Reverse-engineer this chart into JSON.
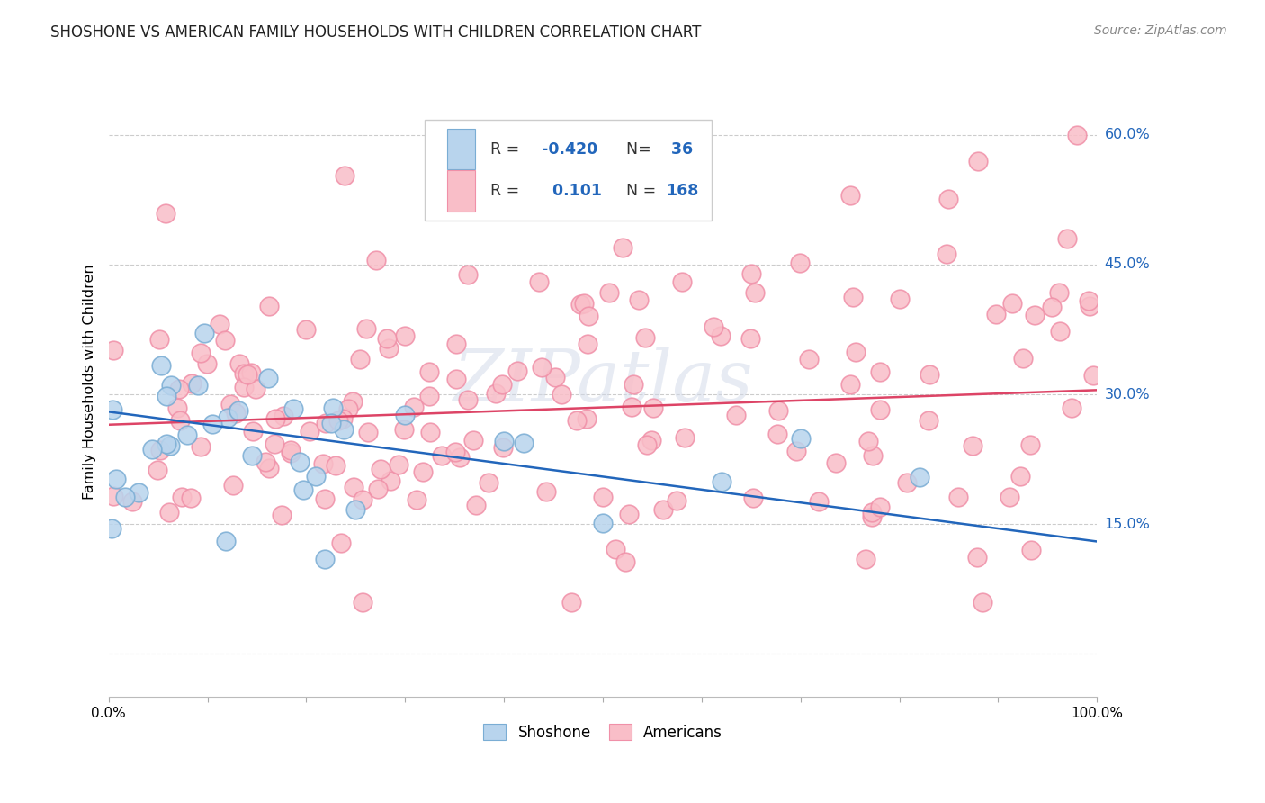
{
  "title": "SHOSHONE VS AMERICAN FAMILY HOUSEHOLDS WITH CHILDREN CORRELATION CHART",
  "source": "Source: ZipAtlas.com",
  "ylabel": "Family Households with Children",
  "ytick_labels": [
    "",
    "15.0%",
    "30.0%",
    "45.0%",
    "60.0%"
  ],
  "ytick_values": [
    0.0,
    0.15,
    0.3,
    0.45,
    0.6
  ],
  "xlim": [
    0.0,
    1.0
  ],
  "ylim": [
    -0.05,
    0.68
  ],
  "shoshone_fill": "#b8d4ed",
  "shoshone_edge": "#7aadd4",
  "american_fill": "#f9bec8",
  "american_edge": "#f090a8",
  "shoshone_line_color": "#2266bb",
  "american_line_color": "#dd4466",
  "watermark": "ZIPatlas",
  "shoshone_line_x": [
    0.0,
    1.0
  ],
  "shoshone_line_y": [
    0.28,
    0.13
  ],
  "american_line_x": [
    0.0,
    1.0
  ],
  "american_line_y": [
    0.265,
    0.305
  ]
}
